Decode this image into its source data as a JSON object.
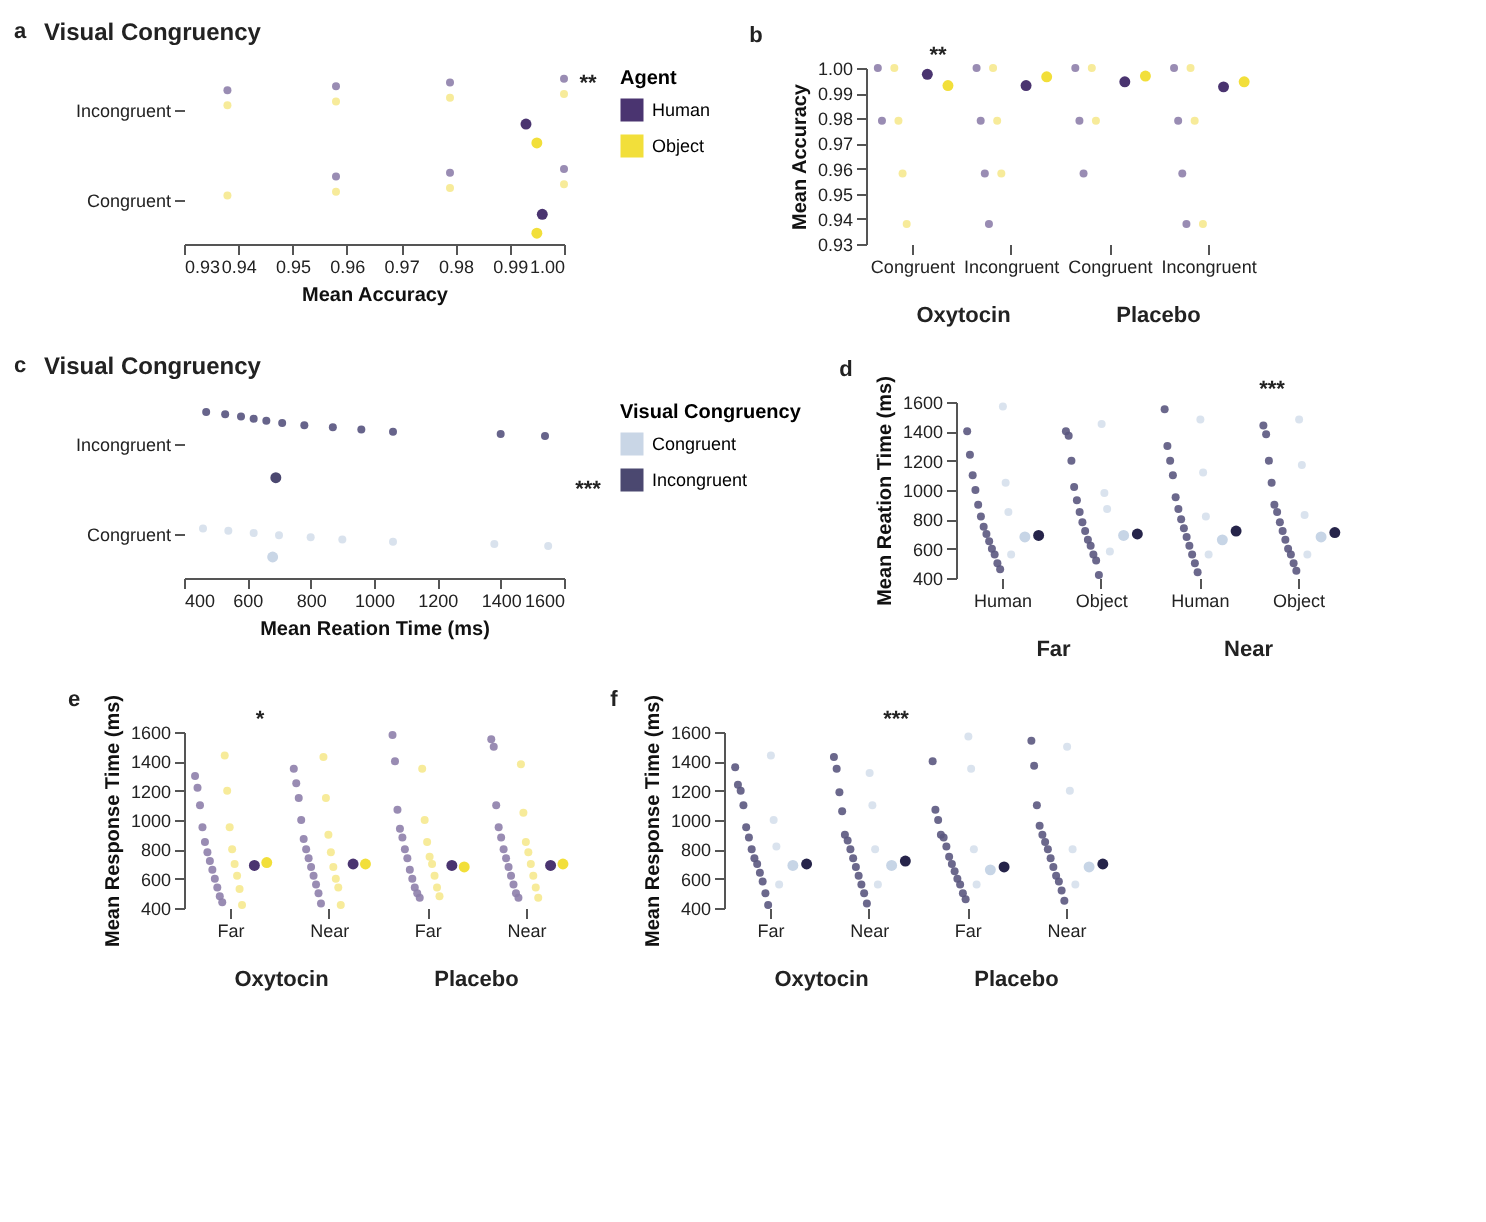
{
  "chart_data": [
    {
      "type": "scatter",
      "title": "Visual Congruency",
      "xlabel": "Mean Accuracy",
      "legend_title": "Agent",
      "legend": "right",
      "marker": "circle",
      "orientation": "horizontal",
      "categories": [
        "Incongruent",
        "Congruent"
      ],
      "xlim": [
        0.93,
        1.0
      ],
      "xticks": [
        0.93,
        0.94,
        0.95,
        0.96,
        0.97,
        0.98,
        0.99,
        {
          "value": 1.0,
          "label": "1.00"
        }
      ],
      "annotations": [
        "a",
        "**"
      ],
      "series": [
        {
          "color": "#8e7fab",
          "values": [
            1.0,
            1.0
          ]
        },
        {
          "color": "#8e7fab",
          "values": [
            0.979,
            0.979
          ]
        },
        {
          "color": "#8e7fab",
          "values": [
            0.958,
            0.958
          ]
        },
        {
          "color": "#8e7fab",
          "values": [
            0.938,
            null
          ]
        },
        {
          "color": "#f6e98f",
          "values": [
            1.0,
            1.0
          ]
        },
        {
          "color": "#f6e98f",
          "values": [
            0.979,
            0.979
          ]
        },
        {
          "color": "#f6e98f",
          "values": [
            0.958,
            0.958
          ]
        },
        {
          "color": "#f6e98f",
          "values": [
            0.938,
            0.938
          ]
        },
        {
          "name": "Human",
          "color": "#4a3470",
          "values": [
            0.993,
            0.996
          ],
          "errors": [
            0.0008,
            0.0008
          ]
        },
        {
          "name": "Object",
          "color": "#f2df3a",
          "values": [
            0.995,
            0.995
          ],
          "errors": [
            0.0008,
            0.0008
          ]
        }
      ]
    },
    {
      "type": "scatter",
      "ylabel": "Mean Accuracy",
      "marker": "circle",
      "categories": [
        "Congruent",
        "Incongruent",
        "Congruent",
        "Incongruent"
      ],
      "ylim": [
        0.93,
        1.0
      ],
      "yticks": [
        0.93,
        0.94,
        0.95,
        0.96,
        0.97,
        0.98,
        0.99,
        {
          "value": 1.0,
          "label": "1.00"
        }
      ],
      "annotations": [
        "b",
        "**",
        "Oxytocin",
        "Placebo"
      ],
      "series": [
        {
          "color": "#8e7fab",
          "values": [
            1.0,
            1.0,
            1.0,
            1.0
          ]
        },
        {
          "color": "#8e7fab",
          "values": [
            0.979,
            0.979,
            0.979,
            0.979
          ]
        },
        {
          "color": "#8e7fab",
          "values": [
            null,
            0.958,
            0.958,
            0.958
          ]
        },
        {
          "color": "#8e7fab",
          "values": [
            null,
            0.938,
            null,
            0.938
          ]
        },
        {
          "color": "#f6e98f",
          "values": [
            1.0,
            1.0,
            1.0,
            1.0
          ]
        },
        {
          "color": "#f6e98f",
          "values": [
            0.979,
            0.979,
            0.979,
            0.979
          ]
        },
        {
          "color": "#f6e98f",
          "values": [
            0.958,
            0.958,
            null,
            null
          ]
        },
        {
          "color": "#f6e98f",
          "values": [
            0.938,
            null,
            null,
            0.938
          ]
        },
        {
          "color": "#4a3470",
          "values": [
            0.9975,
            0.993,
            0.9945,
            0.9925
          ],
          "errors": [
            0.0008,
            0.0008,
            0.0008,
            0.0008
          ]
        },
        {
          "color": "#f2df3a",
          "values": [
            0.993,
            0.9965,
            0.9968,
            0.9945
          ],
          "errors": [
            0.0008,
            0.0008,
            0.0008,
            0.0008
          ]
        }
      ]
    },
    {
      "type": "scatter",
      "title": "Visual Congruency",
      "xlabel": "Mean Reation Time (ms)",
      "legend_title": "Visual Congruency",
      "legend": "right",
      "marker": "circle",
      "orientation": "horizontal",
      "categories": [
        "Incongruent",
        "Congruent"
      ],
      "xlim": [
        400,
        1600
      ],
      "xticks": [
        400,
        600,
        800,
        1000,
        1200,
        1400,
        1600
      ],
      "annotations": [
        "c",
        "***"
      ],
      "series": [
        {
          "color": "#56537e",
          "values": [
            470,
            null
          ]
        },
        {
          "color": "#56537e",
          "values": [
            530,
            null
          ]
        },
        {
          "color": "#56537e",
          "values": [
            580,
            null
          ]
        },
        {
          "color": "#56537e",
          "values": [
            620,
            null
          ]
        },
        {
          "color": "#56537e",
          "values": [
            660,
            null
          ]
        },
        {
          "color": "#56537e",
          "values": [
            710,
            null
          ]
        },
        {
          "color": "#56537e",
          "values": [
            780,
            null
          ]
        },
        {
          "color": "#56537e",
          "values": [
            870,
            null
          ]
        },
        {
          "color": "#56537e",
          "values": [
            960,
            null
          ]
        },
        {
          "color": "#56537e",
          "values": [
            1060,
            null
          ]
        },
        {
          "color": "#56537e",
          "values": [
            1400,
            null
          ]
        },
        {
          "color": "#56537e",
          "values": [
            1540,
            null
          ]
        },
        {
          "color": "#d5dfeb",
          "values": [
            null,
            460
          ]
        },
        {
          "color": "#d5dfeb",
          "values": [
            null,
            540
          ]
        },
        {
          "color": "#d5dfeb",
          "values": [
            null,
            620
          ]
        },
        {
          "color": "#d5dfeb",
          "values": [
            null,
            700
          ]
        },
        {
          "color": "#d5dfeb",
          "values": [
            null,
            800
          ]
        },
        {
          "color": "#d5dfeb",
          "values": [
            null,
            900
          ]
        },
        {
          "color": "#d5dfeb",
          "values": [
            null,
            1060
          ]
        },
        {
          "color": "#d5dfeb",
          "values": [
            null,
            1380
          ]
        },
        {
          "color": "#d5dfeb",
          "values": [
            null,
            1550
          ]
        },
        {
          "name": "Congruent",
          "color": "#c9d6e6",
          "values": [
            null,
            680
          ],
          "errors": [
            null,
            8
          ]
        },
        {
          "name": "Incongruent",
          "color": "#4b4870",
          "values": [
            690,
            null
          ],
          "errors": [
            8,
            null
          ]
        }
      ]
    },
    {
      "type": "scatter",
      "ylabel": "Mean Reation Time (ms)",
      "marker": "circle",
      "categories": [
        "Human",
        "Object",
        "Human",
        "Object"
      ],
      "ylim": [
        400,
        1600
      ],
      "yticks": [
        400,
        600,
        800,
        1000,
        1200,
        1400,
        1600
      ],
      "annotations": [
        "d",
        "***",
        "Far",
        "Near"
      ],
      "series": [
        {
          "color": "#5b5880",
          "values": [
            1400,
            1400,
            1550,
            1440
          ]
        },
        {
          "color": "#5b5880",
          "values": [
            1240,
            1370,
            1300,
            1380
          ]
        },
        {
          "color": "#5b5880",
          "values": [
            1100,
            1200,
            1200,
            1200
          ]
        },
        {
          "color": "#5b5880",
          "values": [
            1000,
            1020,
            1100,
            1050
          ]
        },
        {
          "color": "#5b5880",
          "values": [
            900,
            930,
            950,
            900
          ]
        },
        {
          "color": "#5b5880",
          "values": [
            820,
            850,
            870,
            850
          ]
        },
        {
          "color": "#5b5880",
          "values": [
            750,
            780,
            800,
            780
          ]
        },
        {
          "color": "#5b5880",
          "values": [
            700,
            720,
            740,
            720
          ]
        },
        {
          "color": "#5b5880",
          "values": [
            650,
            660,
            680,
            660
          ]
        },
        {
          "color": "#5b5880",
          "values": [
            600,
            620,
            620,
            600
          ]
        },
        {
          "color": "#5b5880",
          "values": [
            560,
            560,
            560,
            560
          ]
        },
        {
          "color": "#5b5880",
          "values": [
            500,
            520,
            500,
            500
          ]
        },
        {
          "color": "#5b5880",
          "values": [
            460,
            420,
            440,
            450
          ]
        },
        {
          "color": "#d6e0ec",
          "values": [
            1570,
            1450,
            1480,
            1480
          ]
        },
        {
          "color": "#d6e0ec",
          "values": [
            1050,
            980,
            1120,
            1170
          ]
        },
        {
          "color": "#d6e0ec",
          "values": [
            850,
            870,
            820,
            830
          ]
        },
        {
          "color": "#d6e0ec",
          "values": [
            560,
            580,
            560,
            560
          ]
        },
        {
          "color": "#c7d5e6",
          "values": [
            680,
            690,
            660,
            680
          ],
          "errors": [
            15,
            15,
            15,
            15
          ]
        },
        {
          "color": "#26244a",
          "values": [
            690,
            700,
            720,
            710
          ],
          "errors": [
            15,
            15,
            15,
            15
          ]
        }
      ]
    },
    {
      "type": "scatter",
      "ylabel": "Mean Response Time (ms)",
      "marker": "circle",
      "categories": [
        "Far",
        "Near",
        "Far",
        "Near"
      ],
      "ylim": [
        400,
        1600
      ],
      "yticks": [
        400,
        600,
        800,
        1000,
        1200,
        1400,
        1600
      ],
      "annotations": [
        "e",
        "*",
        "Oxytocin",
        "Placebo"
      ],
      "series": [
        {
          "color": "#8e7fab",
          "values": [
            1300,
            1350,
            1580,
            1550
          ]
        },
        {
          "color": "#8e7fab",
          "values": [
            1220,
            1250,
            1400,
            1500
          ]
        },
        {
          "color": "#8e7fab",
          "values": [
            1100,
            1150,
            1070,
            1100
          ]
        },
        {
          "color": "#8e7fab",
          "values": [
            950,
            1000,
            940,
            950
          ]
        },
        {
          "color": "#8e7fab",
          "values": [
            850,
            870,
            880,
            880
          ]
        },
        {
          "color": "#8e7fab",
          "values": [
            780,
            800,
            800,
            800
          ]
        },
        {
          "color": "#8e7fab",
          "values": [
            720,
            740,
            740,
            740
          ]
        },
        {
          "color": "#8e7fab",
          "values": [
            660,
            680,
            660,
            680
          ]
        },
        {
          "color": "#8e7fab",
          "values": [
            600,
            620,
            600,
            620
          ]
        },
        {
          "color": "#8e7fab",
          "values": [
            540,
            560,
            540,
            560
          ]
        },
        {
          "color": "#8e7fab",
          "values": [
            480,
            500,
            500,
            500
          ]
        },
        {
          "color": "#8e7fab",
          "values": [
            440,
            430,
            470,
            470
          ]
        },
        {
          "color": "#f6e98f",
          "values": [
            1440,
            1430,
            1350,
            1380
          ]
        },
        {
          "color": "#f6e98f",
          "values": [
            1200,
            1150,
            1000,
            1050
          ]
        },
        {
          "color": "#f6e98f",
          "values": [
            950,
            900,
            850,
            850
          ]
        },
        {
          "color": "#f6e98f",
          "values": [
            800,
            780,
            750,
            780
          ]
        },
        {
          "color": "#f6e98f",
          "values": [
            700,
            680,
            700,
            700
          ]
        },
        {
          "color": "#f6e98f",
          "values": [
            620,
            600,
            620,
            620
          ]
        },
        {
          "color": "#f6e98f",
          "values": [
            530,
            540,
            540,
            540
          ]
        },
        {
          "color": "#f6e98f",
          "values": [
            420,
            420,
            480,
            470
          ]
        },
        {
          "color": "#4a3470",
          "values": [
            690,
            700,
            690,
            690
          ],
          "errors": [
            18,
            18,
            18,
            18
          ]
        },
        {
          "color": "#f2df3a",
          "values": [
            710,
            700,
            680,
            700
          ],
          "errors": [
            18,
            18,
            18,
            18
          ]
        }
      ]
    },
    {
      "type": "scatter",
      "ylabel": "Mean Response Time (ms)",
      "marker": "circle",
      "categories": [
        "Far",
        "Near",
        "Far",
        "Near"
      ],
      "ylim": [
        400,
        1600
      ],
      "yticks": [
        400,
        600,
        800,
        1000,
        1200,
        1400,
        1600
      ],
      "annotations": [
        "f",
        "***",
        "Oxytocin",
        "Placebo"
      ],
      "series": [
        {
          "color": "#5b5880",
          "values": [
            1360,
            1430,
            1400,
            1540
          ]
        },
        {
          "color": "#5b5880",
          "values": [
            1240,
            1350,
            1070,
            1370
          ]
        },
        {
          "color": "#5b5880",
          "values": [
            1200,
            1190,
            1000,
            1100
          ]
        },
        {
          "color": "#5b5880",
          "values": [
            1100,
            1060,
            900,
            960
          ]
        },
        {
          "color": "#5b5880",
          "values": [
            950,
            900,
            880,
            900
          ]
        },
        {
          "color": "#5b5880",
          "values": [
            880,
            860,
            820,
            850
          ]
        },
        {
          "color": "#5b5880",
          "values": [
            800,
            800,
            750,
            800
          ]
        },
        {
          "color": "#5b5880",
          "values": [
            740,
            740,
            700,
            740
          ]
        },
        {
          "color": "#5b5880",
          "values": [
            700,
            680,
            650,
            680
          ]
        },
        {
          "color": "#5b5880",
          "values": [
            640,
            620,
            600,
            620
          ]
        },
        {
          "color": "#5b5880",
          "values": [
            580,
            560,
            560,
            580
          ]
        },
        {
          "color": "#5b5880",
          "values": [
            500,
            500,
            500,
            520
          ]
        },
        {
          "color": "#5b5880",
          "values": [
            420,
            430,
            460,
            450
          ]
        },
        {
          "color": "#d6e0ec",
          "values": [
            1440,
            1320,
            1570,
            1500
          ]
        },
        {
          "color": "#d6e0ec",
          "values": [
            1000,
            1100,
            1350,
            1200
          ]
        },
        {
          "color": "#d6e0ec",
          "values": [
            820,
            800,
            800,
            800
          ]
        },
        {
          "color": "#d6e0ec",
          "values": [
            560,
            560,
            560,
            560
          ]
        },
        {
          "color": "#c7d5e6",
          "values": [
            690,
            690,
            660,
            680
          ],
          "errors": [
            15,
            15,
            15,
            15
          ]
        },
        {
          "color": "#26244a",
          "values": [
            700,
            720,
            680,
            700
          ],
          "errors": [
            15,
            15,
            15,
            15
          ]
        }
      ]
    }
  ]
}
